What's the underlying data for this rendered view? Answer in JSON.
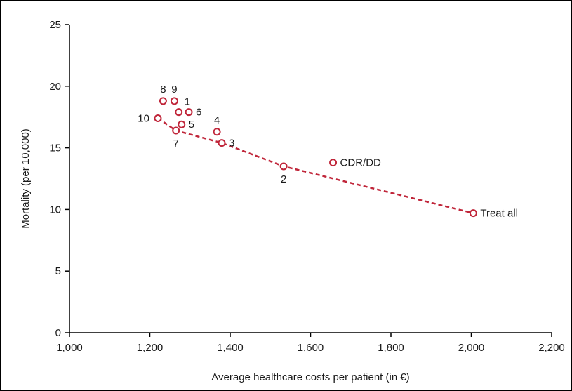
{
  "chart_data": {
    "type": "scatter",
    "title": "",
    "xlabel": "Average healthcare costs per patient (in €)",
    "ylabel": "Mortality (per 10,000)",
    "xlim": [
      1000,
      2200
    ],
    "ylim": [
      0,
      25
    ],
    "x_ticks": [
      1000,
      1200,
      1400,
      1600,
      1800,
      2000,
      2200
    ],
    "x_tick_labels": [
      "1,000",
      "1,200",
      "1,400",
      "1,600",
      "1,800",
      "2,000",
      "2,200"
    ],
    "y_ticks": [
      0,
      5,
      10,
      15,
      20,
      25
    ],
    "y_tick_labels": [
      "0",
      "5",
      "10",
      "15",
      "20",
      "25"
    ],
    "grid": false,
    "legend": "none",
    "colors": {
      "marker": "#c0263a",
      "line": "#c0263a",
      "axis": "#000000"
    },
    "points": [
      {
        "label": "8",
        "x": 1233,
        "y": 18.8,
        "label_pos": "above"
      },
      {
        "label": "9",
        "x": 1261,
        "y": 18.8,
        "label_pos": "above"
      },
      {
        "label": "1",
        "x": 1272,
        "y": 17.9,
        "label_pos": "above-right"
      },
      {
        "label": "6",
        "x": 1297,
        "y": 17.9,
        "label_pos": "right"
      },
      {
        "label": "10",
        "x": 1220,
        "y": 17.4,
        "label_pos": "left"
      },
      {
        "label": "5",
        "x": 1279,
        "y": 16.9,
        "label_pos": "right"
      },
      {
        "label": "7",
        "x": 1265,
        "y": 16.4,
        "label_pos": "below"
      },
      {
        "label": "4",
        "x": 1367,
        "y": 16.3,
        "label_pos": "above"
      },
      {
        "label": "3",
        "x": 1379,
        "y": 15.4,
        "label_pos": "right"
      },
      {
        "label": "2",
        "x": 1533,
        "y": 13.5,
        "label_pos": "below"
      },
      {
        "label": "CDR/DD",
        "x": 1656,
        "y": 13.8,
        "label_pos": "right"
      },
      {
        "label": "Treat all",
        "x": 2005,
        "y": 9.7,
        "label_pos": "right"
      }
    ],
    "frontier": {
      "style": "dashed",
      "x": [
        1220,
        1265,
        1379,
        1533,
        2005
      ],
      "y": [
        17.4,
        16.4,
        15.4,
        13.5,
        9.7
      ]
    }
  }
}
